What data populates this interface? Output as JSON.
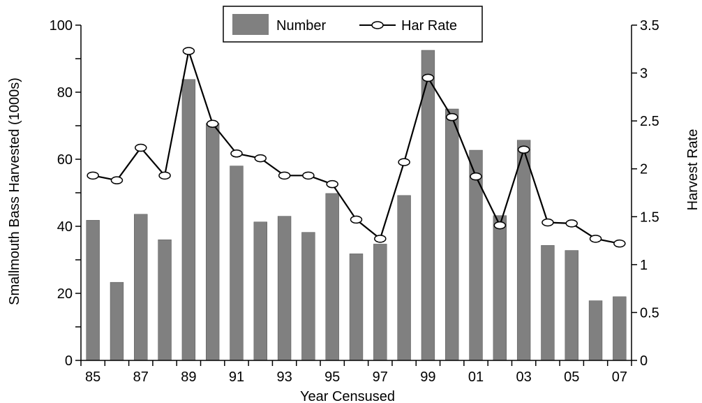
{
  "chart_data": {
    "type": "bar+line",
    "xlabel": "Year Censused",
    "ylabel_left": "Smallmouth Bass Harvested (1000s)",
    "ylabel_right": "Harvest Rate",
    "categories": [
      "85",
      "86",
      "87",
      "88",
      "89",
      "90",
      "91",
      "92",
      "93",
      "94",
      "95",
      "96",
      "97",
      "98",
      "99",
      "00",
      "01",
      "02",
      "03",
      "04",
      "05",
      "06",
      "07"
    ],
    "x_tick_labels": [
      "85",
      "87",
      "89",
      "91",
      "93",
      "95",
      "97",
      "99",
      "01",
      "03",
      "05",
      "07"
    ],
    "y_left_lim": [
      0,
      100
    ],
    "y_left_ticks": [
      "0",
      "20",
      "40",
      "60",
      "80",
      "100"
    ],
    "y_right_lim": [
      0,
      3.5
    ],
    "y_right_ticks": [
      "0",
      "0.5",
      "1",
      "1.5",
      "2",
      "2.5",
      "3",
      "3.5"
    ],
    "series": [
      {
        "name": "Number",
        "kind": "bar",
        "axis": "left",
        "color": "#808080",
        "values": [
          41.8,
          23.3,
          43.6,
          36.0,
          83.8,
          70.7,
          58.0,
          41.3,
          43.0,
          38.2,
          49.8,
          31.8,
          34.7,
          49.2,
          92.5,
          75.0,
          62.7,
          43.2,
          65.7,
          34.3,
          32.8,
          17.8,
          19.0
        ]
      },
      {
        "name": "Har Rate",
        "kind": "line",
        "axis": "right",
        "color": "#000000",
        "values": [
          1.93,
          1.88,
          2.22,
          1.93,
          3.23,
          2.47,
          2.16,
          2.11,
          1.93,
          1.93,
          1.84,
          1.47,
          1.27,
          2.07,
          2.95,
          2.54,
          1.92,
          1.41,
          2.2,
          1.44,
          1.43,
          1.27,
          1.22
        ]
      }
    ],
    "legend": {
      "position": "top-center",
      "entries": [
        "Number",
        "Har Rate"
      ]
    },
    "grid": false
  }
}
